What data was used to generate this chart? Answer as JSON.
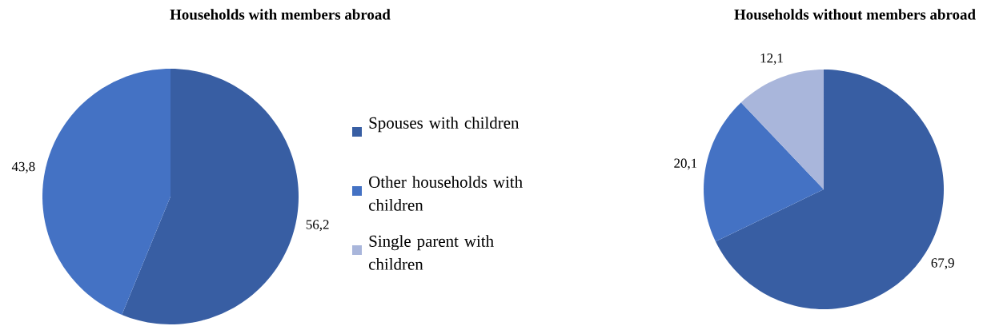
{
  "chart_data": [
    {
      "type": "pie",
      "title": "Households with members abroad",
      "categories": [
        "Spouses with children",
        "Other households with children",
        "Single parent with children"
      ],
      "values": [
        56.2,
        43.8,
        null
      ],
      "value_labels": [
        "56,2",
        "43,8",
        null
      ],
      "colors": [
        "#385ea3",
        "#4472c4",
        "#a9b6db"
      ],
      "legend": "right"
    },
    {
      "type": "pie",
      "title": "Households without members abroad",
      "values": [
        67.9,
        20.1,
        12.1
      ],
      "value_labels": [
        "67,9",
        "20,1",
        "12,1"
      ],
      "colors": [
        "#385ea3",
        "#4472c4",
        "#a9b6db"
      ],
      "legend": false
    }
  ]
}
